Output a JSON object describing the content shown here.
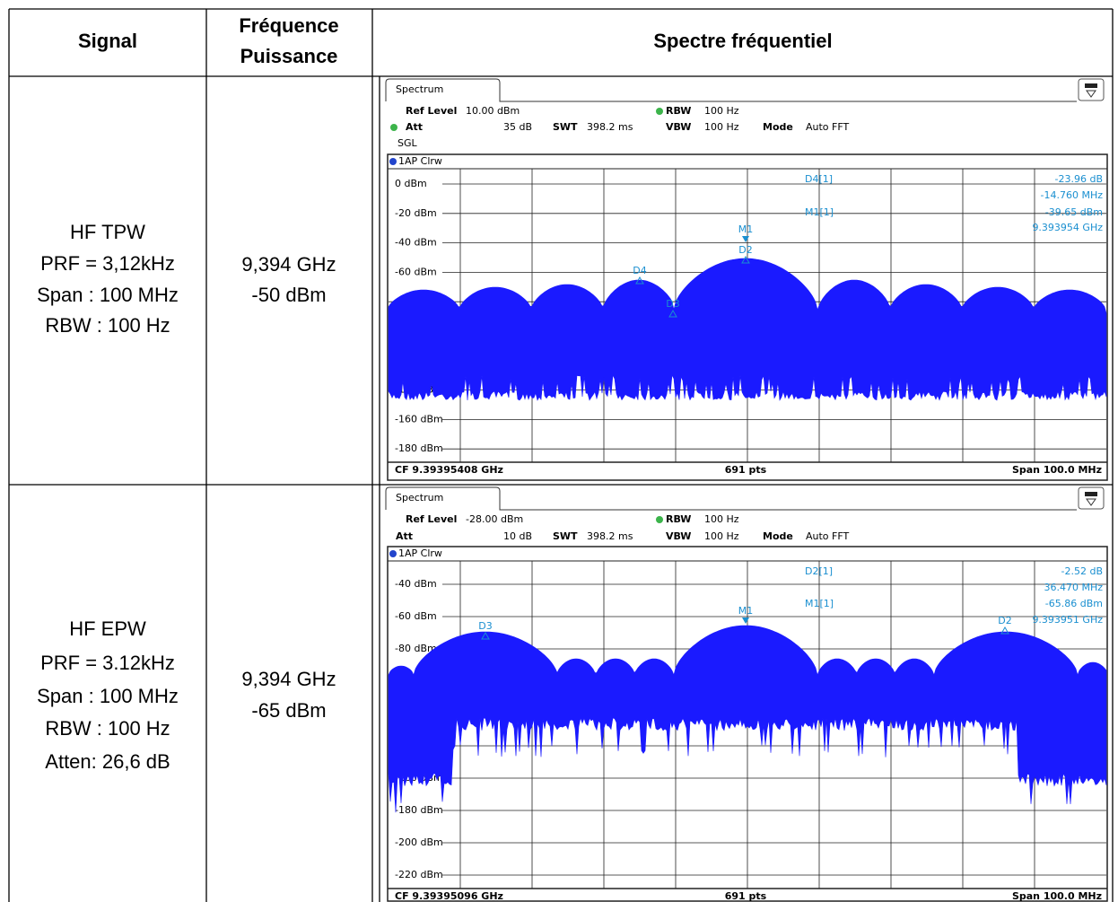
{
  "header": {
    "signal": "Signal",
    "frequency": [
      "Fréquence",
      "Puissance"
    ],
    "spectrum": "Spectre fréquentiel"
  },
  "rows": [
    {
      "signal": [
        "HF TPW",
        "PRF = 3,12kHz",
        "Span : 100 MHz",
        "RBW : 100 Hz"
      ],
      "frequency": [
        "9,394 GHz",
        "-50 dBm"
      ],
      "spectrum": {
        "tab": "Spectrum",
        "settings": {
          "ref_level_label": "Ref Level",
          "ref_level": "10.00 dBm",
          "att_label": "Att",
          "att": "35 dB",
          "swt_label": "SWT",
          "swt": "398.2 ms",
          "rbw_label": "RBW",
          "rbw": "100 Hz",
          "vbw_label": "VBW",
          "vbw": "100 Hz",
          "mode_label": "Mode",
          "mode": "Auto FFT",
          "sgl": "SGL"
        },
        "trace": "1AP Clrw",
        "y_labels": [
          "0 dBm",
          "-20 dBm",
          "-40 dBm",
          "-60 dBm",
          null,
          null,
          null,
          "-140 dBm",
          "-160 dBm",
          "-180 dBm"
        ],
        "readouts": [
          {
            "name": "D4[1]",
            "lines": [
              "-23.96 dB",
              "-14.760 MHz"
            ]
          },
          {
            "name": "M1[1]",
            "lines": [
              "-39.65 dBm",
              "9.393954 GHz"
            ]
          }
        ],
        "markers": [
          "M1",
          "D2",
          "D4",
          "D3"
        ],
        "footer": {
          "cf": "CF 9.39395408 GHz",
          "pts": "691 pts",
          "span": "Span 100.0 MHz"
        }
      }
    },
    {
      "signal": [
        "HF EPW",
        "PRF = 3.12kHz",
        "Span : 100 MHz",
        "RBW : 100 Hz",
        "Atten: 26,6 dB"
      ],
      "frequency": [
        "9,394 GHz",
        "-65 dBm"
      ],
      "spectrum": {
        "tab": "Spectrum",
        "settings": {
          "ref_level_label": "Ref Level",
          "ref_level": "-28.00 dBm",
          "att_label": "Att",
          "att": "10 dB",
          "swt_label": "SWT",
          "swt": "398.2 ms",
          "rbw_label": "RBW",
          "rbw": "100 Hz",
          "vbw_label": "VBW",
          "vbw": "100 Hz",
          "mode_label": "Mode",
          "mode": "Auto FFT"
        },
        "trace": "1AP Clrw",
        "y_labels": [
          "-40 dBm",
          "-60 dBm",
          "-80 dBm",
          null,
          null,
          null,
          "-160 dBm",
          "-180 dBm",
          "-200 dBm",
          "-220 dBm"
        ],
        "readouts": [
          {
            "name": "D2[1]",
            "lines": [
              "-2.52 dB",
              "36.470 MHz"
            ]
          },
          {
            "name": "M1[1]",
            "lines": [
              "-65.86 dBm",
              "9.393951 GHz"
            ]
          }
        ],
        "markers": [
          "M1",
          "D3",
          "D2"
        ],
        "footer": {
          "cf": "CF 9.39395096 GHz",
          "pts": "691 pts",
          "span": "Span 100.0 MHz"
        }
      }
    }
  ]
}
